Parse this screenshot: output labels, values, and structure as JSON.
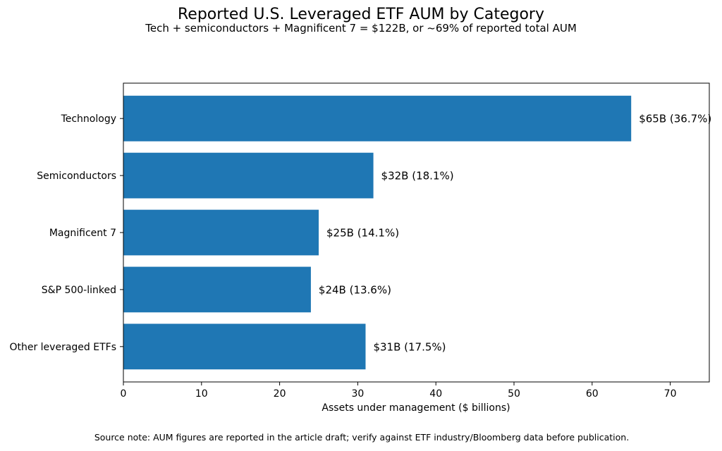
{
  "chart_data": {
    "type": "bar",
    "orientation": "horizontal",
    "title": "Reported U.S. Leveraged ETF AUM by Category",
    "subtitle": "Tech + semiconductors + Magnificent 7 = $122B, or ~69% of reported total AUM",
    "xlabel": "Assets under management ($ billions)",
    "ylabel": "",
    "categories": [
      "Technology",
      "Semiconductors",
      "Magnificent 7",
      "S&P 500-linked",
      "Other leveraged ETFs"
    ],
    "values": [
      65,
      32,
      25,
      24,
      31
    ],
    "data_labels": [
      "$65B (36.7%)",
      "$32B (18.1%)",
      "$25B (14.1%)",
      "$24B (13.6%)",
      "$31B (17.5%)"
    ],
    "xlim": [
      0,
      75
    ],
    "xticks": [
      0,
      10,
      20,
      30,
      40,
      50,
      60,
      70
    ],
    "grid": false,
    "bar_color": "#1f77b4"
  },
  "footnote": "Source note: AUM figures are reported in the article draft; verify against ETF industry/Bloomberg data before publication."
}
